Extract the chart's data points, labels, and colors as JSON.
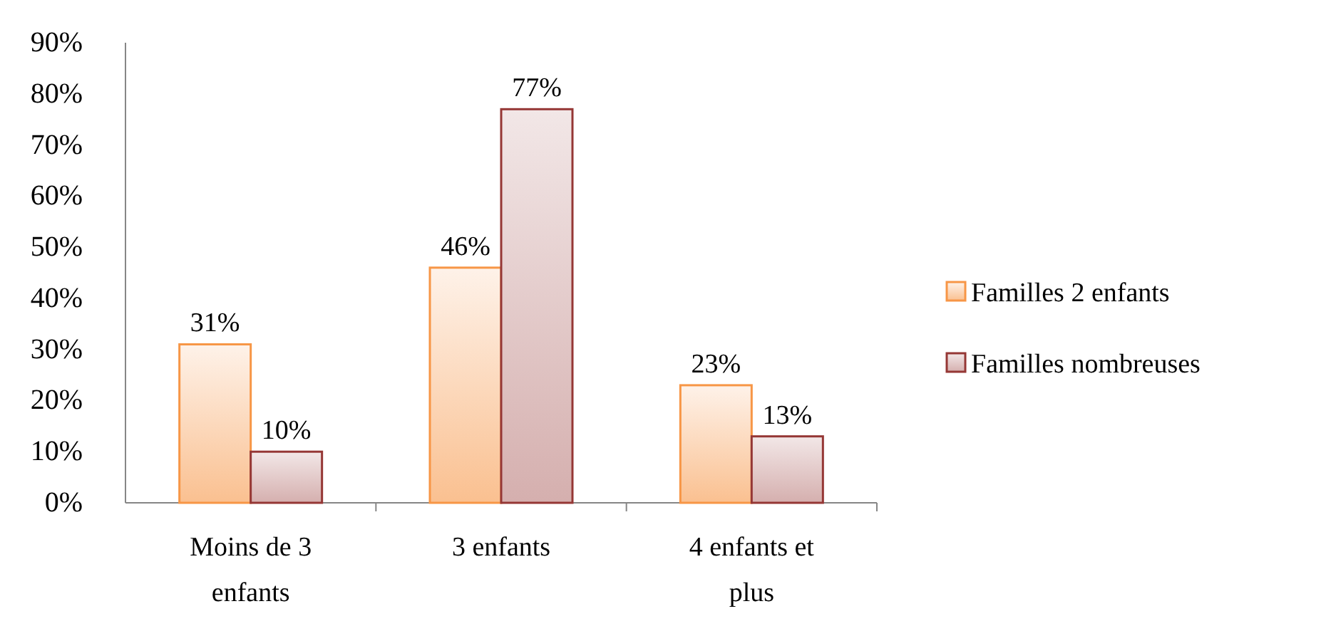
{
  "chart_data": {
    "type": "bar",
    "categories": [
      "Moins de 3 enfants",
      "3 enfants",
      "4 enfants et plus"
    ],
    "series": [
      {
        "name": "Familles 2 enfants",
        "color": "#f79646",
        "values": [
          31,
          46,
          23
        ],
        "value_labels": [
          "31%",
          "46%",
          "23%"
        ]
      },
      {
        "name": "Familles nombreuses",
        "color": "#953735",
        "values": [
          10,
          77,
          13
        ],
        "value_labels": [
          "10%",
          "77%",
          "13%"
        ]
      }
    ],
    "ylim": [
      0,
      90
    ],
    "yticks": [
      {
        "value": 0,
        "label": "0%"
      },
      {
        "value": 10,
        "label": "10%"
      },
      {
        "value": 20,
        "label": "20%"
      },
      {
        "value": 30,
        "label": "30%"
      },
      {
        "value": 40,
        "label": "40%"
      },
      {
        "value": 50,
        "label": "50%"
      },
      {
        "value": 60,
        "label": "60%"
      },
      {
        "value": 70,
        "label": "70%"
      },
      {
        "value": 80,
        "label": "80%"
      },
      {
        "value": 90,
        "label": "90%"
      }
    ],
    "legend": "right",
    "grid": false
  }
}
